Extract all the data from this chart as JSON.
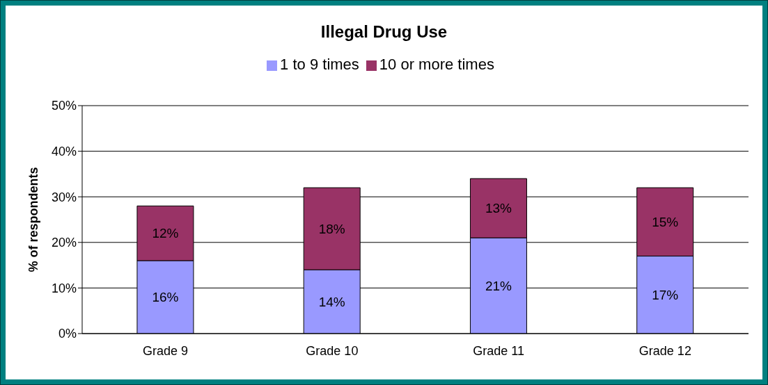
{
  "chart_data": {
    "type": "bar",
    "title": "Illegal Drug Use",
    "ylabel": "% of respondents",
    "categories": [
      "Grade 9",
      "Grade 10",
      "Grade 11",
      "Grade 12"
    ],
    "series": [
      {
        "name": "1 to 9 times",
        "color": "#9999ff",
        "values": [
          16,
          14,
          21,
          17
        ],
        "value_labels": [
          "16%",
          "14%",
          "21%",
          "17%"
        ]
      },
      {
        "name": "10 or more times",
        "color": "#993366",
        "values": [
          12,
          18,
          13,
          15
        ],
        "value_labels": [
          "12%",
          "18%",
          "13%",
          "15%"
        ]
      }
    ],
    "stacked": true,
    "ylim": [
      0,
      50
    ],
    "yticks": [
      {
        "value": 0,
        "label": "0%"
      },
      {
        "value": 10,
        "label": "10%"
      },
      {
        "value": 20,
        "label": "20%"
      },
      {
        "value": 30,
        "label": "30%"
      },
      {
        "value": 40,
        "label": "40%"
      },
      {
        "value": 50,
        "label": "50%"
      }
    ],
    "grid": "y",
    "legend": "top"
  }
}
